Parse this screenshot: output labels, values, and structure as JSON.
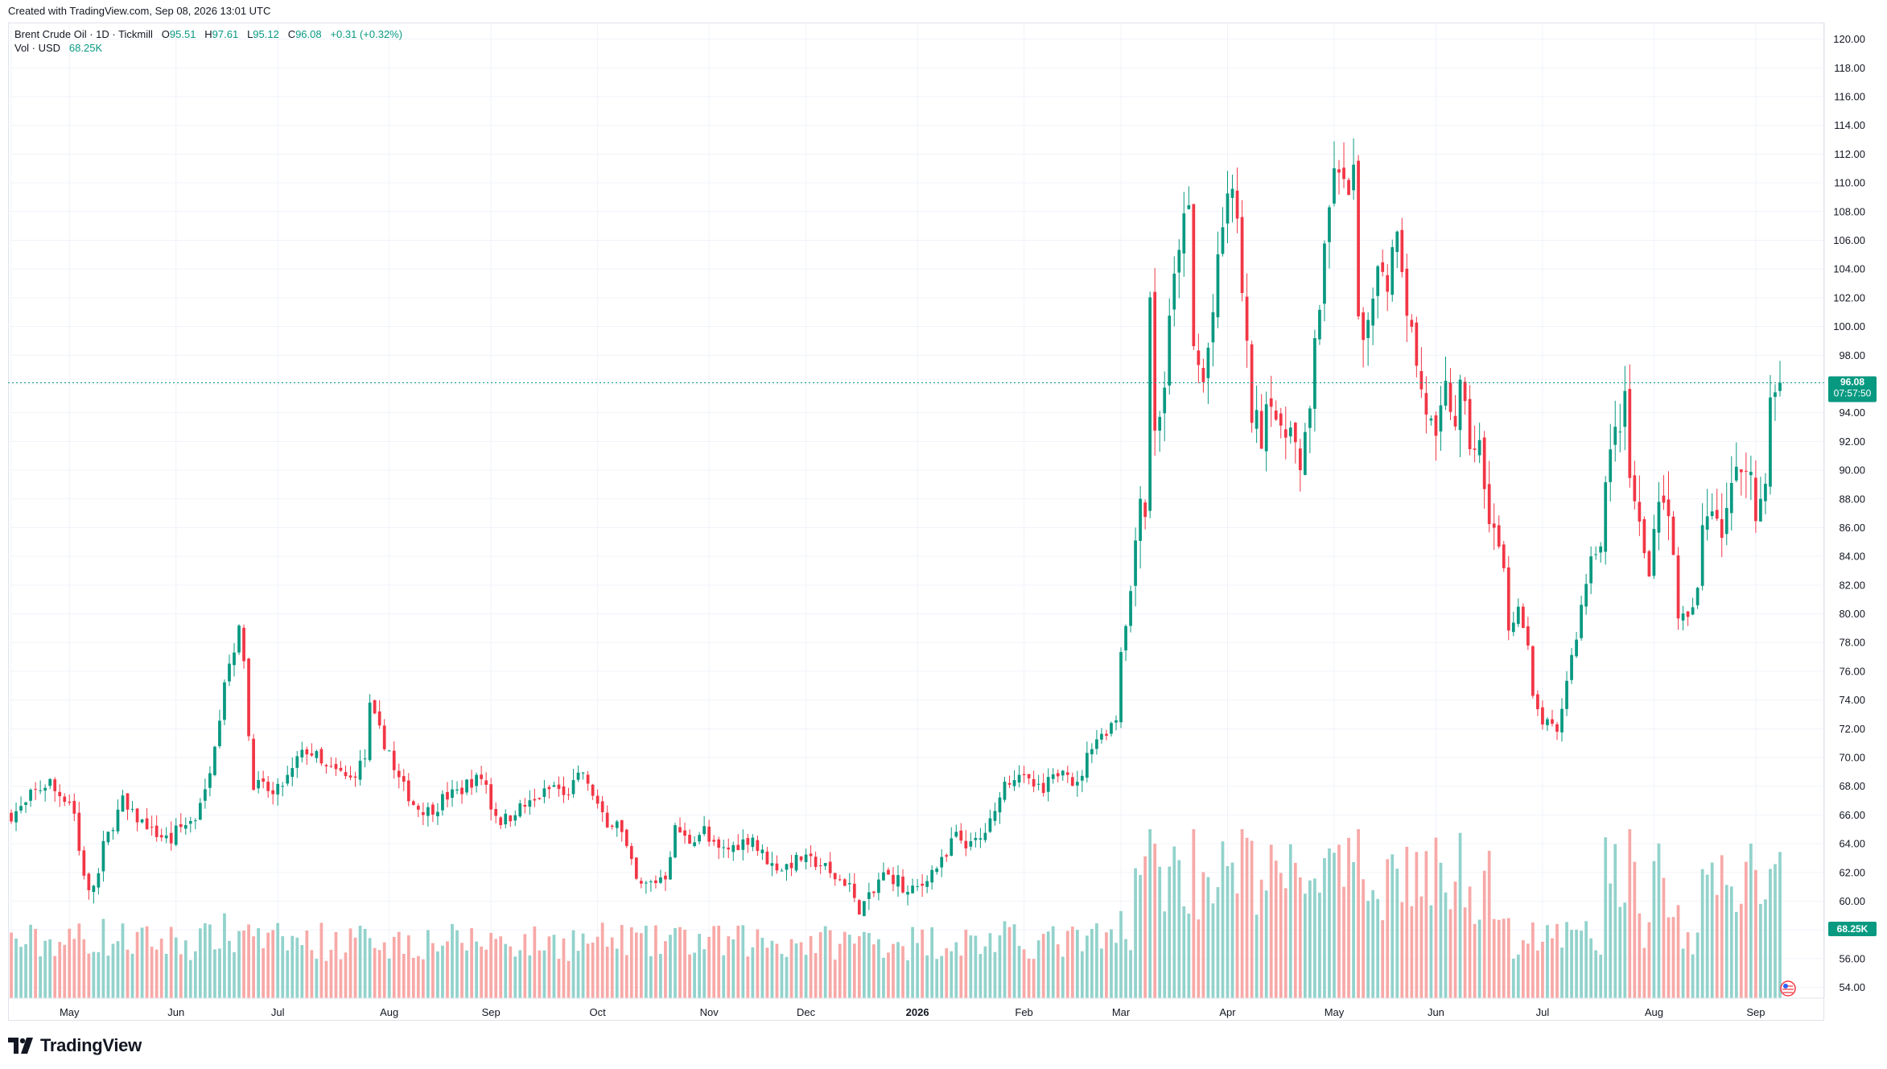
{
  "header": {
    "created_text": "Created with TradingView.com, Sep 08, 2026 13:01 UTC"
  },
  "legend": {
    "symbol": "Brent Crude Oil · 1D · Tickmill",
    "o_label": "O",
    "o_value": "95.51",
    "h_label": "H",
    "h_value": "97.61",
    "l_label": "L",
    "l_value": "95.12",
    "c_label": "C",
    "c_value": "96.08",
    "change": "+0.31 (+0.32%)",
    "vol_label": "Vol · USD",
    "vol_value": "68.25K"
  },
  "badges": {
    "price": "96.08",
    "countdown": "07:57:50",
    "volume": "68.25K"
  },
  "footer": {
    "brand": "TradingView"
  },
  "colors": {
    "up": "#089981",
    "down": "#f23645",
    "vol_up": "#92d2cc",
    "vol_down": "#f7a9a7",
    "grid": "#f0f3fa",
    "border": "#e0e3eb"
  },
  "chart_data": {
    "type": "candlestick",
    "title": "Brent Crude Oil · 1D · Tickmill",
    "ylabel": "",
    "xlabel": "",
    "ylim": [
      53,
      121
    ],
    "y_ticks": [
      "54.00",
      "56.00",
      "58.00",
      "60.00",
      "62.00",
      "64.00",
      "66.00",
      "68.00",
      "70.00",
      "72.00",
      "74.00",
      "76.00",
      "78.00",
      "80.00",
      "82.00",
      "84.00",
      "86.00",
      "88.00",
      "90.00",
      "92.00",
      "94.00",
      "96.00",
      "98.00",
      "100.00",
      "102.00",
      "104.00",
      "106.00",
      "108.00",
      "110.00",
      "112.00",
      "114.00",
      "116.00",
      "118.00",
      "120.00"
    ],
    "x_ticks": [
      "May",
      "Jun",
      "Jul",
      "Aug",
      "Sep",
      "Oct",
      "Nov",
      "Dec",
      "2026",
      "Feb",
      "Mar",
      "Apr",
      "May",
      "Jun",
      "Jul",
      "Aug",
      "Sep"
    ],
    "last_close": 96.08,
    "grid": true,
    "anchors": [
      [
        "Apr 15",
        66.0
      ],
      [
        "Apr 25",
        68.3
      ],
      [
        "May 01",
        67.0
      ],
      [
        "May 05",
        63.5
      ],
      [
        "May 07",
        60.5
      ],
      [
        "May 12",
        63.8
      ],
      [
        "May 16",
        67.0
      ],
      [
        "May 22",
        65.5
      ],
      [
        "May 30",
        64.2
      ],
      [
        "Jun 06",
        65.8
      ],
      [
        "Jun 10",
        67.5
      ],
      [
        "Jun 13",
        73.0
      ],
      [
        "Jun 16",
        75.5
      ],
      [
        "Jun 19",
        78.8
      ],
      [
        "Jun 20",
        77.0
      ],
      [
        "Jun 23",
        71.5
      ],
      [
        "Jun 24",
        68.2
      ],
      [
        "Jun 30",
        67.3
      ],
      [
        "Jul 04",
        69.0
      ],
      [
        "Jul 09",
        70.5
      ],
      [
        "Jul 15",
        69.2
      ],
      [
        "Jul 22",
        68.5
      ],
      [
        "Jul 25",
        70.0
      ],
      [
        "Jul 28",
        73.5
      ],
      [
        "Jul 31",
        71.0
      ],
      [
        "Aug 04",
        69.0
      ],
      [
        "Aug 08",
        66.8
      ],
      [
        "Aug 13",
        66.3
      ],
      [
        "Aug 19",
        67.3
      ],
      [
        "Aug 25",
        68.2
      ],
      [
        "Aug 28",
        68.6
      ],
      [
        "Sep 03",
        65.6
      ],
      [
        "Sep 09",
        66.5
      ],
      [
        "Sep 15",
        67.3
      ],
      [
        "Sep 18",
        68.0
      ],
      [
        "Sep 22",
        67.2
      ],
      [
        "Sep 26",
        69.0
      ],
      [
        "Sep 30",
        67.5
      ],
      [
        "Oct 03",
        65.0
      ],
      [
        "Oct 07",
        65.8
      ],
      [
        "Oct 10",
        62.5
      ],
      [
        "Oct 14",
        61.0
      ],
      [
        "Oct 17",
        61.4
      ],
      [
        "Oct 21",
        61.8
      ],
      [
        "Oct 23",
        65.0
      ],
      [
        "Oct 28",
        64.2
      ],
      [
        "Oct 31",
        65.0
      ],
      [
        "Nov 05",
        63.5
      ],
      [
        "Nov 10",
        63.8
      ],
      [
        "Nov 14",
        64.5
      ],
      [
        "Nov 18",
        63.3
      ],
      [
        "Nov 20",
        62.5
      ],
      [
        "Nov 24",
        62.3
      ],
      [
        "Nov 28",
        63.0
      ],
      [
        "Dec 03",
        62.7
      ],
      [
        "Dec 08",
        61.8
      ],
      [
        "Dec 12",
        61.2
      ],
      [
        "Dec 16",
        59.5
      ],
      [
        "Dec 18",
        60.2
      ],
      [
        "Dec 23",
        61.8
      ],
      [
        "Dec 26",
        61.5
      ],
      [
        "Dec 30",
        60.5
      ],
      [
        "Jan 05",
        61.8
      ],
      [
        "Jan 09",
        63.0
      ],
      [
        "Jan 13",
        64.5
      ],
      [
        "Jan 16",
        63.8
      ],
      [
        "Jan 20",
        64.3
      ],
      [
        "Jan 23",
        66.0
      ],
      [
        "Jan 27",
        68.2
      ],
      [
        "Jan 30",
        69.0
      ],
      [
        "Feb 04",
        68.0
      ],
      [
        "Feb 06",
        67.5
      ],
      [
        "Feb 10",
        68.5
      ],
      [
        "Feb 12",
        69.5
      ],
      [
        "Feb 17",
        68.0
      ],
      [
        "Feb 20",
        71.0
      ],
      [
        "Feb 24",
        71.5
      ],
      [
        "Feb 27",
        72.8
      ],
      [
        "Mar 02",
        77.5
      ],
      [
        "Mar 04",
        81.5
      ],
      [
        "Mar 06",
        89.0
      ],
      [
        "Mar 09",
        87.0
      ],
      [
        "Mar 10",
        102.5
      ],
      [
        "Mar 11",
        92.5
      ],
      [
        "Mar 13",
        96.0
      ],
      [
        "Mar 16",
        100.0
      ],
      [
        "Mar 18",
        106.0
      ],
      [
        "Mar 20",
        108.0
      ],
      [
        "Mar 23",
        98.5
      ],
      [
        "Mar 25",
        96.0
      ],
      [
        "Mar 27",
        101.0
      ],
      [
        "Mar 30",
        104.0
      ],
      [
        "Apr 01",
        109.5
      ],
      [
        "Apr 03",
        108.0
      ],
      [
        "Apr 06",
        102.0
      ],
      [
        "Apr 08",
        94.0
      ],
      [
        "Apr 10",
        92.5
      ],
      [
        "Apr 14",
        95.5
      ],
      [
        "Apr 16",
        92.0
      ],
      [
        "Apr 20",
        94.0
      ],
      [
        "Apr 22",
        89.5
      ],
      [
        "Apr 24",
        94.0
      ],
      [
        "Apr 28",
        101.5
      ],
      [
        "Apr 30",
        108.0
      ],
      [
        "May 01",
        111.5
      ],
      [
        "May 05",
        109.5
      ],
      [
        "May 07",
        110.5
      ],
      [
        "May 08",
        100.5
      ],
      [
        "May 11",
        98.0
      ],
      [
        "May 13",
        103.0
      ],
      [
        "May 15",
        104.5
      ],
      [
        "May 18",
        103.0
      ],
      [
        "May 20",
        107.5
      ],
      [
        "May 22",
        101.5
      ],
      [
        "May 25",
        99.5
      ],
      [
        "May 27",
        95.5
      ],
      [
        "May 29",
        93.0
      ],
      [
        "Jun 01",
        91.5
      ],
      [
        "Jun 03",
        95.5
      ],
      [
        "Jun 05",
        93.5
      ],
      [
        "Jun 08",
        95.5
      ],
      [
        "Jun 10",
        92.0
      ],
      [
        "Jun 12",
        91.5
      ],
      [
        "Jun 15",
        88.0
      ],
      [
        "Jun 17",
        86.0
      ],
      [
        "Jun 19",
        83.0
      ],
      [
        "Jun 22",
        79.0
      ],
      [
        "Jun 24",
        80.5
      ],
      [
        "Jun 26",
        77.5
      ],
      [
        "Jun 29",
        74.0
      ],
      [
        "Jul 01",
        72.5
      ],
      [
        "Jul 03",
        72.0
      ],
      [
        "Jul 06",
        71.5
      ],
      [
        "Jul 08",
        75.5
      ],
      [
        "Jul 10",
        78.5
      ],
      [
        "Jul 13",
        80.5
      ],
      [
        "Jul 15",
        84.0
      ],
      [
        "Jul 17",
        85.0
      ],
      [
        "Jul 20",
        89.0
      ],
      [
        "Jul 22",
        92.5
      ],
      [
        "Jul 24",
        94.5
      ],
      [
        "Jul 27",
        89.5
      ],
      [
        "Jul 29",
        86.0
      ],
      [
        "Jul 31",
        82.5
      ],
      [
        "Aug 03",
        87.0
      ],
      [
        "Aug 05",
        88.5
      ],
      [
        "Aug 07",
        84.0
      ],
      [
        "Aug 10",
        80.0
      ],
      [
        "Aug 12",
        79.5
      ],
      [
        "Aug 14",
        81.5
      ],
      [
        "Aug 17",
        86.0
      ],
      [
        "Aug 19",
        88.0
      ],
      [
        "Aug 21",
        86.0
      ],
      [
        "Aug 24",
        87.5
      ],
      [
        "Aug 26",
        89.5
      ],
      [
        "Aug 28",
        91.0
      ],
      [
        "Aug 31",
        89.5
      ],
      [
        "Sep 01",
        86.5
      ],
      [
        "Sep 02",
        88.0
      ],
      [
        "Sep 03",
        90.0
      ],
      [
        "Sep 04",
        94.5
      ],
      [
        "Sep 07",
        95.5
      ],
      [
        "Sep 08",
        96.08
      ]
    ]
  }
}
